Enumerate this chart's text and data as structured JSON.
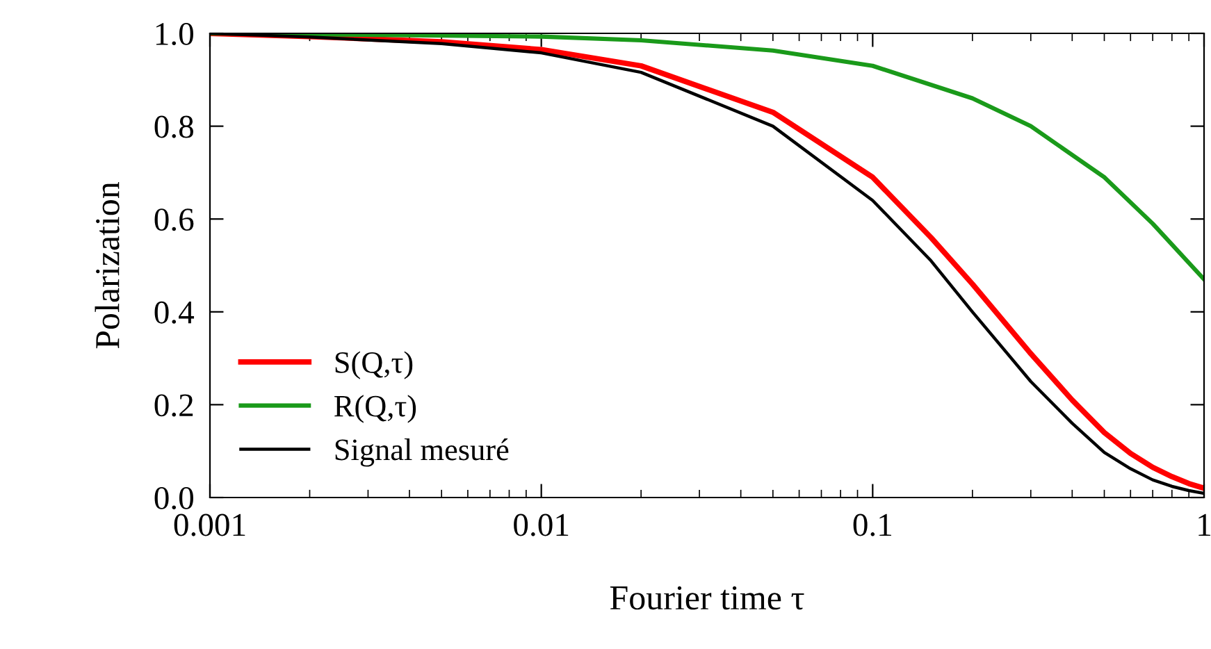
{
  "chart_data": {
    "type": "line",
    "xlabel": "Fourier time τ",
    "ylabel": "Polarization",
    "log": "x",
    "xlim": [
      0.001,
      1
    ],
    "xticks": [
      0.001,
      0.01,
      0.1,
      1
    ],
    "ylim": [
      0,
      1
    ],
    "yticks": [
      {
        "value": 0,
        "label": "0.0"
      },
      {
        "value": 0.2,
        "label": "0.2"
      },
      {
        "value": 0.4,
        "label": "0.4"
      },
      {
        "value": 0.6,
        "label": "0.6"
      },
      {
        "value": 0.8,
        "label": "0.8"
      },
      {
        "value": 1,
        "label": "1.0"
      }
    ],
    "grid": false,
    "legend": "lower left",
    "marker": "none",
    "line_style": "solid",
    "series": [
      {
        "name": "S(Q,τ)",
        "color": "#ff0000",
        "x": [
          0.001,
          0.002,
          0.005,
          0.01,
          0.02,
          0.05,
          0.1,
          0.15,
          0.2,
          0.3,
          0.4,
          0.5,
          0.6,
          0.7,
          0.8,
          0.9,
          1.0
        ],
        "values": [
          1.0,
          0.993,
          0.982,
          0.965,
          0.93,
          0.83,
          0.69,
          0.56,
          0.46,
          0.31,
          0.21,
          0.14,
          0.095,
          0.065,
          0.045,
          0.03,
          0.02
        ]
      },
      {
        "name": "R(Q,τ)",
        "color": "#1a9a1a",
        "x": [
          0.001,
          0.01,
          0.02,
          0.05,
          0.1,
          0.2,
          0.3,
          0.5,
          0.7,
          1.0
        ],
        "values": [
          1.0,
          0.993,
          0.985,
          0.963,
          0.93,
          0.86,
          0.8,
          0.69,
          0.59,
          0.47
        ]
      },
      {
        "name": "Signal mesuré",
        "color": "#000000",
        "x": [
          0.001,
          0.002,
          0.005,
          0.01,
          0.02,
          0.05,
          0.1,
          0.15,
          0.2,
          0.3,
          0.4,
          0.5,
          0.6,
          0.7,
          0.8,
          0.9,
          1.0
        ],
        "values": [
          1.0,
          0.992,
          0.978,
          0.958,
          0.916,
          0.8,
          0.64,
          0.51,
          0.4,
          0.25,
          0.16,
          0.097,
          0.062,
          0.038,
          0.024,
          0.015,
          0.009
        ]
      }
    ]
  }
}
